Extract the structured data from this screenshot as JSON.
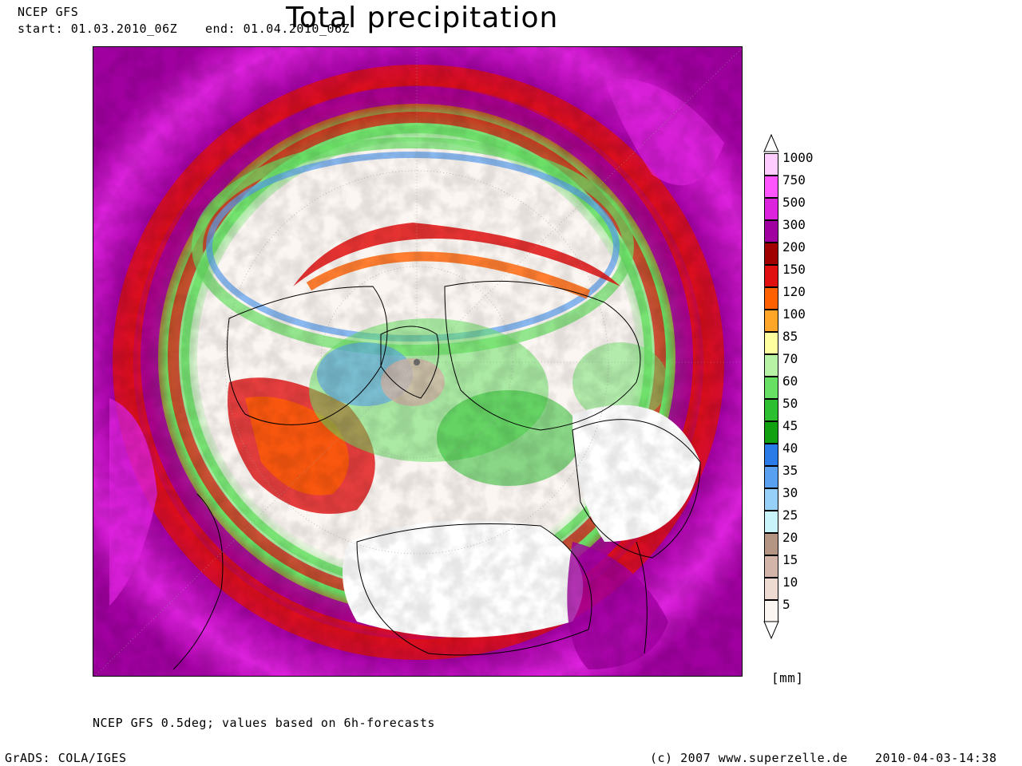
{
  "header": {
    "model": "NCEP GFS",
    "start": "start: 01.03.2010_06Z",
    "end": "end: 01.04.2010_06Z",
    "title": "Total precipitation"
  },
  "legend": {
    "unit": "[mm]",
    "levels": [
      {
        "label": "1000",
        "color": "#ffccff"
      },
      {
        "label": "750",
        "color": "#ff55ff"
      },
      {
        "label": "500",
        "color": "#dd22dd"
      },
      {
        "label": "300",
        "color": "#a000a0"
      },
      {
        "label": "200",
        "color": "#a00000"
      },
      {
        "label": "150",
        "color": "#e01010"
      },
      {
        "label": "120",
        "color": "#ff6000"
      },
      {
        "label": "100",
        "color": "#ffa628"
      },
      {
        "label": "85",
        "color": "#ffffa0"
      },
      {
        "label": "70",
        "color": "#b8f2a4"
      },
      {
        "label": "60",
        "color": "#68e064"
      },
      {
        "label": "50",
        "color": "#2cc030"
      },
      {
        "label": "45",
        "color": "#10a010"
      },
      {
        "label": "40",
        "color": "#2a7ae8"
      },
      {
        "label": "35",
        "color": "#5aa0f0"
      },
      {
        "label": "30",
        "color": "#96d0f8"
      },
      {
        "label": "25",
        "color": "#c8f4fa"
      },
      {
        "label": "20",
        "color": "#b49584"
      },
      {
        "label": "15",
        "color": "#d2b4a8"
      },
      {
        "label": "10",
        "color": "#eddbd2"
      },
      {
        "label": "5",
        "color": "#fcf6f2"
      }
    ]
  },
  "footer": {
    "note": "NCEP GFS 0.5deg; values based on 6h-forecasts",
    "grads": "GrADS: COLA/IGES",
    "copyright": "(c) 2007 www.superzelle.de",
    "timestamp": "2010-04-03-14:38"
  }
}
